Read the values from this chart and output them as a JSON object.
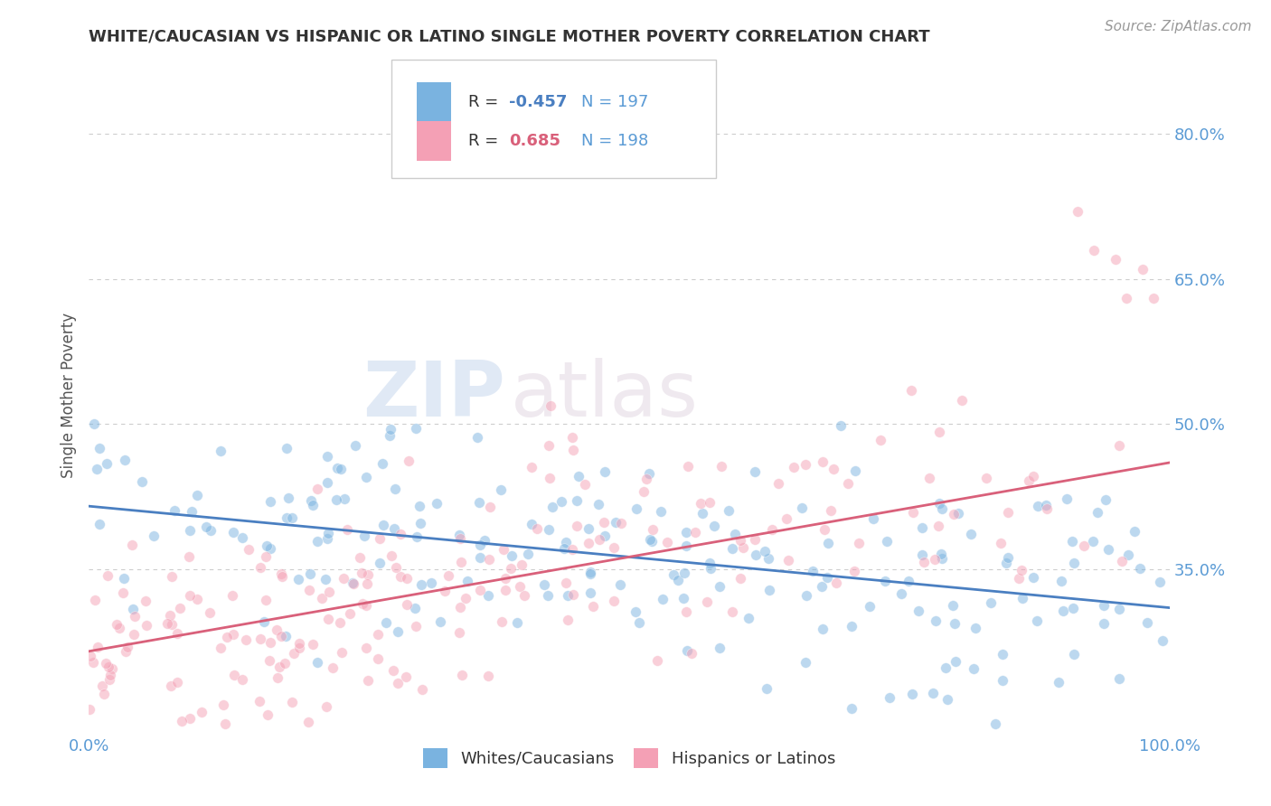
{
  "title": "WHITE/CAUCASIAN VS HISPANIC OR LATINO SINGLE MOTHER POVERTY CORRELATION CHART",
  "source": "Source: ZipAtlas.com",
  "ylabel": "Single Mother Poverty",
  "x_min": 0.0,
  "x_max": 1.0,
  "y_min": 0.18,
  "y_max": 0.88,
  "y_ticks": [
    0.35,
    0.5,
    0.65,
    0.8
  ],
  "y_tick_labels": [
    "35.0%",
    "50.0%",
    "65.0%",
    "80.0%"
  ],
  "x_ticks": [
    0.0,
    0.1,
    0.2,
    0.3,
    0.4,
    0.5,
    0.6,
    0.7,
    0.8,
    0.9,
    1.0
  ],
  "x_tick_labels": [
    "0.0%",
    "",
    "",
    "",
    "",
    "",
    "",
    "",
    "",
    "",
    "100.0%"
  ],
  "blue_R": -0.457,
  "blue_N": 197,
  "pink_R": 0.685,
  "pink_N": 198,
  "blue_color": "#7ab3e0",
  "pink_color": "#f4a0b5",
  "blue_line_color": "#4a7fc1",
  "pink_line_color": "#d9607a",
  "legend_label_blue": "Whites/Caucasians",
  "legend_label_pink": "Hispanics or Latinos",
  "watermark_zip": "ZIP",
  "watermark_atlas": "atlas",
  "background_color": "#ffffff",
  "grid_color": "#c8c8c8",
  "title_color": "#333333",
  "axis_label_color": "#555555",
  "tick_label_color": "#5b9bd5",
  "blue_intercept": 0.415,
  "blue_slope": -0.105,
  "pink_intercept": 0.265,
  "pink_slope": 0.195
}
